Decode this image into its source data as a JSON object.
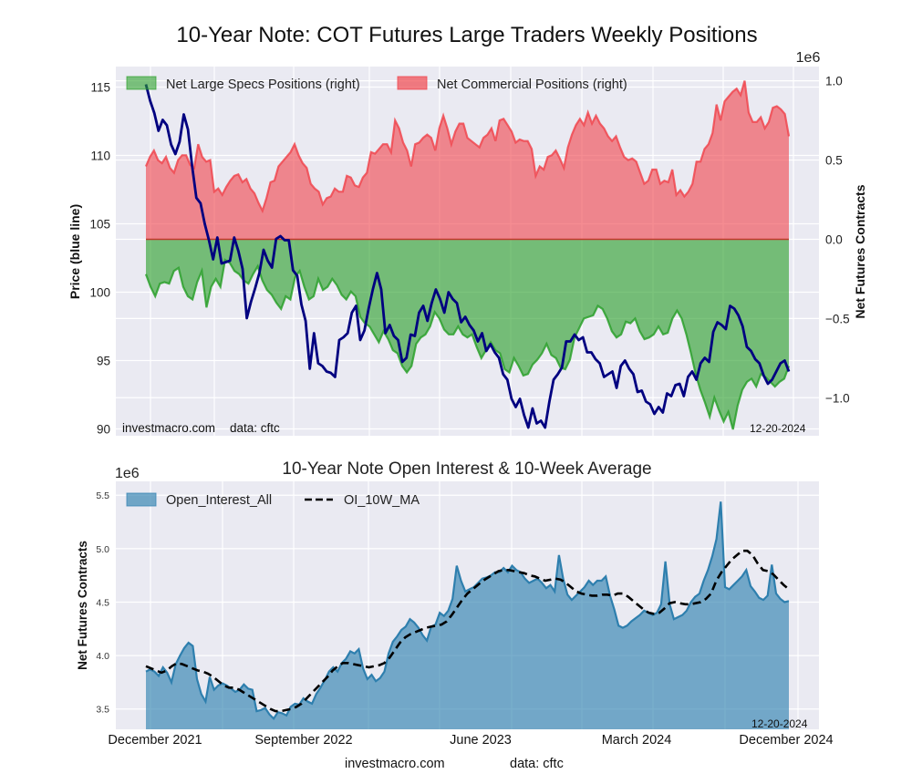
{
  "figure": {
    "source_label": "investmacro.com",
    "data_label": "data: cftc",
    "date_stamp": "12-20-2024"
  },
  "chart_data": [
    {
      "type": "area",
      "title": "10-Year Note: COT Futures Large Traders Weekly Positions",
      "ylabel": "Price (blue line)",
      "y2label": "Net Futures Contracts",
      "y2_offset_label": "1e6",
      "ylim": [
        89.5,
        116.5
      ],
      "y2lim": [
        -1.24,
        1.09
      ],
      "yticks": [
        90,
        95,
        100,
        105,
        110,
        115
      ],
      "y2ticks": [
        -1.0,
        -0.5,
        0.0,
        0.5,
        1.0
      ],
      "y2tick_labels": [
        "−1.0",
        "−0.5",
        "0.0",
        "0.5",
        "1.0"
      ],
      "grid": true,
      "legend_position": "top-left",
      "annotations": [
        "investmacro.com   data: cftc",
        "12-20-2024"
      ],
      "x_start": "2021-12",
      "x_end": "2024-12-20",
      "series": [
        {
          "name": "Net Large Specs Positions (right)",
          "kind": "area",
          "color": "#2ca02c",
          "values": [
            -0.22,
            -0.3,
            -0.36,
            -0.28,
            -0.27,
            -0.28,
            -0.2,
            -0.18,
            -0.3,
            -0.36,
            -0.38,
            -0.27,
            -0.2,
            -0.43,
            -0.3,
            -0.25,
            -0.3,
            -0.13,
            -0.15,
            -0.2,
            -0.22,
            -0.26,
            -0.28,
            -0.22,
            -0.17,
            -0.26,
            -0.32,
            -0.35,
            -0.4,
            -0.44,
            -0.36,
            -0.38,
            -0.24,
            -0.2,
            -0.3,
            -0.38,
            -0.36,
            -0.25,
            -0.32,
            -0.3,
            -0.25,
            -0.29,
            -0.35,
            -0.38,
            -0.33,
            -0.36,
            -0.49,
            -0.53,
            -0.55,
            -0.6,
            -0.65,
            -0.58,
            -0.63,
            -0.7,
            -0.72,
            -0.8,
            -0.84,
            -0.8,
            -0.66,
            -0.62,
            -0.6,
            -0.55,
            -0.46,
            -0.5,
            -0.57,
            -0.6,
            -0.6,
            -0.55,
            -0.6,
            -0.62,
            -0.6,
            -0.68,
            -0.75,
            -0.7,
            -0.65,
            -0.7,
            -0.72,
            -0.82,
            -0.84,
            -0.75,
            -0.8,
            -0.86,
            -0.85,
            -0.79,
            -0.76,
            -0.72,
            -0.66,
            -0.73,
            -0.75,
            -0.81,
            -0.82,
            -0.76,
            -0.62,
            -0.56,
            -0.5,
            -0.49,
            -0.48,
            -0.42,
            -0.44,
            -0.5,
            -0.58,
            -0.62,
            -0.6,
            -0.52,
            -0.53,
            -0.5,
            -0.58,
            -0.63,
            -0.62,
            -0.6,
            -0.55,
            -0.6,
            -0.59,
            -0.5,
            -0.45,
            -0.5,
            -0.6,
            -0.72,
            -0.85,
            -0.95,
            -1.03,
            -1.12,
            -1.0,
            -1.08,
            -1.15,
            -1.09,
            -1.2,
            -1.05,
            -0.95,
            -0.9,
            -0.88,
            -0.93,
            -0.85,
            -0.87,
            -0.9,
            -0.93,
            -0.9,
            -0.88,
            -0.8
          ],
          "line_color": "#2ca02c"
        },
        {
          "name": "Net Commercial Positions (right)",
          "kind": "area",
          "color": "#f0474f",
          "values": [
            0.46,
            0.52,
            0.56,
            0.5,
            0.48,
            0.52,
            0.45,
            0.42,
            0.5,
            0.53,
            0.53,
            0.47,
            0.45,
            0.6,
            0.52,
            0.49,
            0.5,
            0.3,
            0.32,
            0.28,
            0.33,
            0.37,
            0.4,
            0.41,
            0.36,
            0.38,
            0.32,
            0.29,
            0.23,
            0.18,
            0.26,
            0.36,
            0.37,
            0.46,
            0.49,
            0.52,
            0.55,
            0.6,
            0.53,
            0.48,
            0.45,
            0.35,
            0.32,
            0.3,
            0.22,
            0.26,
            0.27,
            0.32,
            0.3,
            0.3,
            0.4,
            0.39,
            0.34,
            0.33,
            0.39,
            0.42,
            0.55,
            0.54,
            0.57,
            0.6,
            0.6,
            0.55,
            0.75,
            0.7,
            0.61,
            0.56,
            0.46,
            0.6,
            0.61,
            0.64,
            0.66,
            0.64,
            0.56,
            0.7,
            0.78,
            0.7,
            0.6,
            0.68,
            0.73,
            0.73,
            0.64,
            0.62,
            0.6,
            0.58,
            0.64,
            0.66,
            0.7,
            0.62,
            0.75,
            0.76,
            0.72,
            0.68,
            0.61,
            0.63,
            0.62,
            0.62,
            0.57,
            0.4,
            0.46,
            0.44,
            0.52,
            0.53,
            0.56,
            0.51,
            0.45,
            0.58,
            0.66,
            0.72,
            0.76,
            0.72,
            0.8,
            0.73,
            0.78,
            0.73,
            0.7,
            0.65,
            0.62,
            0.65,
            0.58,
            0.52,
            0.5,
            0.51,
            0.49,
            0.42,
            0.35,
            0.37,
            0.44,
            0.44,
            0.35,
            0.37,
            0.36,
            0.44,
            0.28,
            0.31,
            0.27,
            0.3,
            0.35,
            0.49,
            0.49,
            0.57,
            0.6,
            0.67,
            0.85,
            0.75,
            0.87,
            0.9,
            0.93,
            0.95,
            0.91,
            1.0,
            0.8,
            0.74,
            0.74,
            0.77,
            0.7,
            0.74,
            0.83,
            0.84,
            0.82,
            0.79,
            0.65
          ]
        },
        {
          "name": "Price (blue line)",
          "kind": "line",
          "axis": "left",
          "color": "#000080",
          "values": [
            115.2,
            114.0,
            113.1,
            111.8,
            112.6,
            112.2,
            110.8,
            110.1,
            111.0,
            113.0,
            111.9,
            109.2,
            106.9,
            106.5,
            105.0,
            103.8,
            102.4,
            104.0,
            102.1,
            102.2,
            102.3,
            104.0,
            103.0,
            101.7,
            98.1,
            99.3,
            100.3,
            101.4,
            103.1,
            102.3,
            101.8,
            103.9,
            104.1,
            103.8,
            103.8,
            101.6,
            101.2,
            99.1,
            97.9,
            94.4,
            97.0,
            94.8,
            94.6,
            94.2,
            94.1,
            93.8,
            96.5,
            96.7,
            97.0,
            98.5,
            99.0,
            96.5,
            97.2,
            98.8,
            100.2,
            101.4,
            100.2,
            97.0,
            97.6,
            96.8,
            96.5,
            94.9,
            95.2,
            96.9,
            96.8,
            98.5,
            99.0,
            97.9,
            99.2,
            100.2,
            99.5,
            98.5,
            100.0,
            99.5,
            99.2,
            97.8,
            98.2,
            97.6,
            97.2,
            96.4,
            97.0,
            95.7,
            96.2,
            95.6,
            95.2,
            94.0,
            93.6,
            92.2,
            91.6,
            92.2,
            91.0,
            90.1,
            91.5,
            90.4,
            90.6,
            90.1,
            92.0,
            93.6,
            94.0,
            94.5,
            96.4,
            96.4,
            96.9,
            96.5,
            96.7,
            95.6,
            95.6,
            95.1,
            94.8,
            93.8,
            94.0,
            94.2,
            93.0,
            94.6,
            95.0,
            94.4,
            94.0,
            92.7,
            92.8,
            92.0,
            91.8,
            91.1,
            91.6,
            91.2,
            92.6,
            92.4,
            93.2,
            93.3,
            92.4,
            93.8,
            94.2,
            93.6,
            94.8,
            95.2,
            94.9,
            97.1,
            97.8,
            97.6,
            97.3,
            99.0,
            98.8,
            98.3,
            97.5,
            96.0,
            95.7,
            95.1,
            94.8,
            93.9,
            93.3,
            93.6,
            94.2,
            94.8,
            95.0,
            94.2
          ]
        }
      ],
      "legend": [
        "Net Large Specs Positions (right)",
        "Net Commercial Positions (right)"
      ]
    },
    {
      "type": "area",
      "title": "10-Year Note Open Interest & 10-Week Average",
      "ylabel": "Net Futures Contracts",
      "y_offset_label": "1e6",
      "ylim": [
        3.31,
        5.63
      ],
      "yticks": [
        3.5,
        4.0,
        4.5,
        5.0,
        5.5
      ],
      "grid": true,
      "legend_position": "top-left",
      "xtick_labels": [
        "December 2021",
        "September 2022",
        "June 2023",
        "March 2024",
        "December 2024"
      ],
      "annotations": [
        "12-20-2024"
      ],
      "series": [
        {
          "name": "Open_Interest_All",
          "kind": "area",
          "color": "#3a87b4",
          "values": [
            3.85,
            3.87,
            3.85,
            3.81,
            3.89,
            3.84,
            3.75,
            3.92,
            4.0,
            4.07,
            4.12,
            4.09,
            3.78,
            3.64,
            3.57,
            3.8,
            3.68,
            3.72,
            3.74,
            3.72,
            3.69,
            3.66,
            3.68,
            3.73,
            3.69,
            3.68,
            3.48,
            3.49,
            3.51,
            3.45,
            3.41,
            3.47,
            3.46,
            3.44,
            3.52,
            3.55,
            3.54,
            3.6,
            3.57,
            3.55,
            3.64,
            3.7,
            3.77,
            3.85,
            3.89,
            3.85,
            3.93,
            3.97,
            4.04,
            4.02,
            4.06,
            3.88,
            3.78,
            3.82,
            3.76,
            3.79,
            3.85,
            4.02,
            4.13,
            4.18,
            4.24,
            4.27,
            4.34,
            4.31,
            4.26,
            4.19,
            4.14,
            4.27,
            4.29,
            4.4,
            4.37,
            4.42,
            4.53,
            4.84,
            4.7,
            4.6,
            4.62,
            4.64,
            4.68,
            4.72,
            4.73,
            4.75,
            4.78,
            4.78,
            4.82,
            4.78,
            4.84,
            4.8,
            4.78,
            4.72,
            4.68,
            4.7,
            4.72,
            4.68,
            4.63,
            4.66,
            4.6,
            4.94,
            4.72,
            4.57,
            4.52,
            4.56,
            4.6,
            4.64,
            4.7,
            4.66,
            4.7,
            4.7,
            4.74,
            4.56,
            4.43,
            4.28,
            4.26,
            4.28,
            4.32,
            4.35,
            4.38,
            4.42,
            4.4,
            4.38,
            4.4,
            4.48,
            4.88,
            4.48,
            4.34,
            4.36,
            4.38,
            4.42,
            4.5,
            4.55,
            4.58,
            4.7,
            4.8,
            4.93,
            5.09,
            5.44,
            4.64,
            4.62,
            4.66,
            4.7,
            4.74,
            4.8,
            4.65,
            4.6,
            4.54,
            4.52,
            4.56,
            4.85,
            4.58,
            4.53,
            4.5,
            4.51
          ]
        },
        {
          "name": "OI_10W_MA",
          "kind": "line",
          "style": "dashed",
          "color": "#000000",
          "values": [
            3.9,
            3.88,
            3.86,
            3.84,
            3.86,
            3.9,
            3.93,
            3.92,
            3.9,
            3.88,
            3.86,
            3.85,
            3.83,
            3.8,
            3.76,
            3.72,
            3.7,
            3.7,
            3.68,
            3.65,
            3.62,
            3.59,
            3.56,
            3.53,
            3.5,
            3.48,
            3.48,
            3.49,
            3.5,
            3.52,
            3.55,
            3.6,
            3.65,
            3.7,
            3.75,
            3.8,
            3.86,
            3.9,
            3.93,
            3.93,
            3.92,
            3.91,
            3.9,
            3.89,
            3.9,
            3.91,
            3.93,
            3.98,
            4.05,
            4.12,
            4.17,
            4.2,
            4.22,
            4.24,
            4.26,
            4.27,
            4.28,
            4.29,
            4.32,
            4.38,
            4.45,
            4.52,
            4.58,
            4.62,
            4.66,
            4.7,
            4.73,
            4.76,
            4.79,
            4.8,
            4.8,
            4.79,
            4.78,
            4.77,
            4.75,
            4.74,
            4.72,
            4.7,
            4.71,
            4.72,
            4.71,
            4.68,
            4.64,
            4.6,
            4.58,
            4.57,
            4.56,
            4.56,
            4.57,
            4.57,
            4.56,
            4.58,
            4.58,
            4.55,
            4.51,
            4.47,
            4.43,
            4.4,
            4.39,
            4.4,
            4.44,
            4.49,
            4.5,
            4.49,
            4.48,
            4.48,
            4.49,
            4.5,
            4.53,
            4.58,
            4.7,
            4.78,
            4.84,
            4.9,
            4.94,
            4.98,
            4.98,
            4.94,
            4.86,
            4.8,
            4.79,
            4.76,
            4.71,
            4.66,
            4.62
          ]
        }
      ],
      "legend": [
        "Open_Interest_All",
        "OI_10W_MA"
      ]
    }
  ],
  "footer": {
    "left": "investmacro.com",
    "right": "data: cftc"
  }
}
